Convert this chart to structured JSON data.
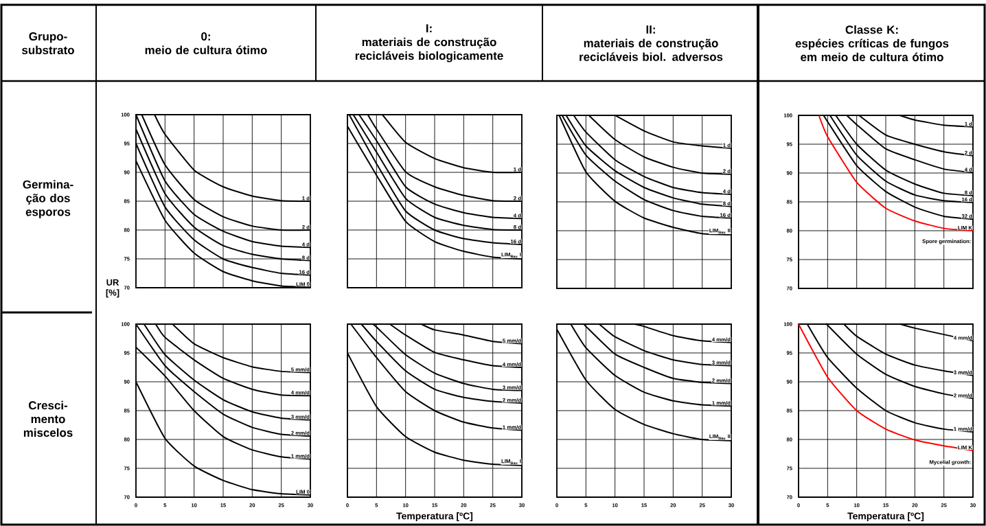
{
  "chart_data": [
    {
      "type": "line",
      "title": "0:",
      "subtitle": "meio de cultura ótimo",
      "ylabel": "UR [%]",
      "annotations": [
        "Grupo-substrato",
        "Germina-ção dos esporos"
      ],
      "xlim": [
        0,
        30
      ],
      "ylim": [
        70,
        100
      ],
      "xticks": [
        0,
        5,
        10,
        15,
        20,
        25,
        30
      ],
      "yticks": [
        70,
        75,
        80,
        85,
        90,
        95,
        100
      ],
      "grid": true,
      "tick_labels": "y",
      "series": [
        {
          "name": "1 d",
          "color": "#000000",
          "x": [
            3.2,
            5,
            10,
            15,
            20,
            25,
            30
          ],
          "values": [
            100,
            96.6,
            90.4,
            87.5,
            85.9,
            85.1,
            85
          ]
        },
        {
          "name": "2 d",
          "color": "#000000",
          "x": [
            1,
            5,
            10,
            15,
            20,
            25,
            30
          ],
          "values": [
            100,
            91.3,
            85.3,
            82.3,
            80.7,
            80,
            80
          ]
        },
        {
          "name": "4 d",
          "color": "#000000",
          "x": [
            0,
            5,
            10,
            15,
            20,
            25,
            30
          ],
          "values": [
            100,
            88.5,
            82.7,
            79.8,
            78,
            77.2,
            77
          ]
        },
        {
          "name": "8 d",
          "color": "#000000",
          "x": [
            0,
            5,
            10,
            15,
            20,
            25,
            30
          ],
          "values": [
            97.5,
            86.3,
            80.5,
            77.3,
            75.8,
            75,
            74.7
          ]
        },
        {
          "name": "16 d",
          "color": "#000000",
          "x": [
            0,
            5,
            10,
            15,
            20,
            25,
            30
          ],
          "values": [
            95,
            84,
            78.3,
            75,
            73.5,
            72.5,
            72.2
          ]
        },
        {
          "name": "LIM 0",
          "color": "#000000",
          "x": [
            0,
            5,
            10,
            15,
            20,
            25,
            30
          ],
          "values": [
            92,
            81.7,
            76,
            72.8,
            71.2,
            70.3,
            70.1
          ]
        }
      ]
    },
    {
      "type": "line",
      "title": "I:",
      "subtitle": "materiais de construção recicláveis biologicamente",
      "xlim": [
        0,
        30
      ],
      "ylim": [
        70,
        100
      ],
      "xticks": [
        0,
        5,
        10,
        15,
        20,
        25,
        30
      ],
      "yticks": [
        70,
        75,
        80,
        85,
        90,
        95,
        100
      ],
      "grid": true,
      "tick_labels": false,
      "series": [
        {
          "name": "1 d",
          "color": "#000000",
          "x": [
            6,
            10,
            15,
            20,
            25,
            30
          ],
          "values": [
            100,
            95.2,
            92.4,
            90.8,
            90,
            90
          ]
        },
        {
          "name": "2 d",
          "color": "#000000",
          "x": [
            3.5,
            5,
            10,
            15,
            20,
            25,
            30
          ],
          "values": [
            100,
            97.5,
            90.1,
            87.5,
            86,
            85.1,
            85
          ]
        },
        {
          "name": "4 d",
          "color": "#000000",
          "x": [
            2,
            5,
            10,
            15,
            20,
            25,
            30
          ],
          "values": [
            100,
            95.5,
            87.5,
            84.5,
            83,
            82.2,
            82
          ]
        },
        {
          "name": "8 d",
          "color": "#000000",
          "x": [
            1,
            5,
            10,
            15,
            20,
            25,
            30
          ],
          "values": [
            100,
            93.5,
            85.5,
            82.2,
            80.8,
            80.1,
            80
          ]
        },
        {
          "name": "16 d",
          "color": "#000000",
          "x": [
            0.3,
            5,
            10,
            15,
            20,
            25,
            30
          ],
          "values": [
            100,
            91.5,
            83.3,
            80,
            78.5,
            77.8,
            77.5
          ]
        },
        {
          "name": "LIM$_{Bau}$ I",
          "color": "#000000",
          "x": [
            0,
            5,
            10,
            15,
            20,
            25,
            30
          ],
          "values": [
            98,
            89.5,
            81.5,
            78,
            76.3,
            75.3,
            75
          ]
        }
      ]
    },
    {
      "type": "line",
      "title": "II:",
      "subtitle": "materiais de construção recicláveis biol. adversos",
      "xlim": [
        0,
        30
      ],
      "ylim": [
        70,
        100
      ],
      "xticks": [
        0,
        5,
        10,
        15,
        20,
        25,
        30
      ],
      "yticks": [
        70,
        75,
        80,
        85,
        90,
        95,
        100
      ],
      "grid": true,
      "tick_labels": false,
      "series": [
        {
          "name": "1 d",
          "color": "#000000",
          "x": [
            10,
            15,
            20,
            25,
            30
          ],
          "values": [
            100,
            97.3,
            95.4,
            94.7,
            94.3
          ]
        },
        {
          "name": "2 d",
          "color": "#000000",
          "x": [
            5.5,
            10,
            15,
            20,
            25,
            30
          ],
          "values": [
            100,
            95.8,
            92.8,
            91,
            90,
            89.8
          ]
        },
        {
          "name": "4 d",
          "color": "#000000",
          "x": [
            2.9,
            5,
            10,
            15,
            20,
            25,
            30
          ],
          "values": [
            100,
            97.1,
            92.3,
            89.4,
            87.5,
            86.6,
            86.3
          ]
        },
        {
          "name": "8 d",
          "color": "#000000",
          "x": [
            1.6,
            5,
            10,
            15,
            20,
            25,
            30
          ],
          "values": [
            100,
            94.7,
            90.4,
            87.5,
            85.7,
            84.6,
            84.2
          ]
        },
        {
          "name": "16 d",
          "color": "#000000",
          "x": [
            0.9,
            5,
            10,
            15,
            20,
            25,
            30
          ],
          "values": [
            100,
            93.1,
            88.6,
            85.4,
            83.5,
            82.5,
            82.2
          ]
        },
        {
          "name": "LIM$_{Bau}$ II",
          "color": "#000000",
          "x": [
            0.4,
            5,
            10,
            15,
            20,
            25,
            30
          ],
          "values": [
            100,
            90.2,
            85.1,
            82.2,
            80.6,
            79.5,
            79.3
          ]
        }
      ]
    },
    {
      "type": "line",
      "title": "Classe K:",
      "subtitle": "espécies críticas de fungos em meio de cultura ótimo",
      "annotations": [
        "Spore germination:"
      ],
      "xlim": [
        0,
        30
      ],
      "ylim": [
        70,
        100
      ],
      "xticks": [
        0,
        5,
        10,
        15,
        20,
        25,
        30
      ],
      "yticks": [
        70,
        75,
        80,
        85,
        90,
        95,
        100
      ],
      "grid": true,
      "tick_labels": "y",
      "series": [
        {
          "name": "1 d",
          "color": "#000000",
          "x": [
            17.4,
            20,
            25,
            30
          ],
          "values": [
            100,
            99.2,
            98.3,
            98
          ]
        },
        {
          "name": "2 d",
          "color": "#000000",
          "x": [
            10.4,
            15,
            20,
            25,
            30
          ],
          "values": [
            100,
            96.6,
            95,
            93.7,
            93
          ]
        },
        {
          "name": "4 d",
          "color": "#000000",
          "x": [
            8.3,
            10,
            15,
            20,
            25,
            30
          ],
          "values": [
            100,
            98.4,
            94.2,
            92.3,
            90.7,
            90.1
          ]
        },
        {
          "name": "8 d",
          "color": "#000000",
          "x": [
            6.4,
            10,
            15,
            20,
            25,
            30
          ],
          "values": [
            100,
            95,
            90.5,
            88.1,
            86.5,
            86.1
          ]
        },
        {
          "name": "16 d",
          "color": "#000000",
          "x": [
            5.4,
            10,
            15,
            20,
            25,
            30
          ],
          "values": [
            100,
            93.1,
            88.6,
            86.2,
            85.2,
            84.9
          ]
        },
        {
          "name": "32 d",
          "color": "#000000",
          "x": [
            4.3,
            5,
            10,
            15,
            20,
            25,
            30
          ],
          "values": [
            100,
            98.9,
            91.3,
            86.8,
            84.1,
            82.5,
            82
          ]
        },
        {
          "name": "LIM K",
          "color": "#ff0000",
          "x": [
            3.5,
            5,
            10,
            15,
            20,
            25,
            30
          ],
          "values": [
            100,
            96.3,
            88.4,
            83.9,
            81.7,
            80.4,
            80
          ]
        }
      ]
    },
    {
      "type": "line",
      "annotations": [
        "Cresci-mento miscelos"
      ],
      "xlim": [
        0,
        30
      ],
      "ylim": [
        70,
        100
      ],
      "xticks": [
        0,
        5,
        10,
        15,
        20,
        25,
        30
      ],
      "yticks": [
        70,
        75,
        80,
        85,
        90,
        95,
        100
      ],
      "grid": true,
      "series": [
        {
          "name": "5 mm/d",
          "color": "#000000",
          "x": [
            6.3,
            10,
            15,
            20,
            25,
            30
          ],
          "values": [
            100,
            96.6,
            94.2,
            92.6,
            91.8,
            91.6
          ]
        },
        {
          "name": "4 mm/d",
          "color": "#000000",
          "x": [
            3.4,
            5,
            10,
            15,
            20,
            25,
            30
          ],
          "values": [
            100,
            97.7,
            93.8,
            90.6,
            88.7,
            87.7,
            87.6
          ]
        },
        {
          "name": "3 mm/d",
          "color": "#000000",
          "x": [
            1.4,
            5,
            10,
            15,
            20,
            25,
            30
          ],
          "values": [
            100,
            94.7,
            90.3,
            86.9,
            84.8,
            83.7,
            83.4
          ]
        },
        {
          "name": "2 mm/d",
          "color": "#000000",
          "x": [
            0,
            5,
            10,
            15,
            20,
            25,
            30
          ],
          "values": [
            100,
            92.8,
            88.3,
            84.4,
            82.1,
            80.9,
            80.6
          ]
        },
        {
          "name": "1 mm/d",
          "color": "#000000",
          "x": [
            0,
            5,
            10,
            15,
            20,
            25,
            30
          ],
          "values": [
            96,
            91,
            85,
            80.5,
            78.2,
            77,
            76.6
          ]
        },
        {
          "name": "LIM 0",
          "color": "#000000",
          "x": [
            0,
            5,
            10,
            15,
            20,
            25,
            30
          ],
          "values": [
            90,
            80.2,
            75.4,
            72.9,
            71.3,
            70.6,
            70.4
          ]
        }
      ]
    },
    {
      "type": "line",
      "xlabel": "Temperatura [ºC]",
      "xlim": [
        0,
        30
      ],
      "ylim": [
        70,
        100
      ],
      "xticks": [
        0,
        5,
        10,
        15,
        20,
        25,
        30
      ],
      "yticks": [
        70,
        75,
        80,
        85,
        90,
        95,
        100
      ],
      "grid": true,
      "tick_labels": "x",
      "series": [
        {
          "name": "5 mm/d",
          "color": "#000000",
          "x": [
            12.7,
            15,
            20,
            25,
            30
          ],
          "values": [
            100,
            99,
            98.1,
            97,
            96.6
          ]
        },
        {
          "name": "4 mm/d",
          "color": "#000000",
          "x": [
            7.3,
            10,
            15,
            20,
            25,
            30
          ],
          "values": [
            100,
            98.1,
            95.1,
            93.8,
            92.8,
            92.5
          ]
        },
        {
          "name": "3 mm/d",
          "color": "#000000",
          "x": [
            4.4,
            5,
            10,
            15,
            20,
            25,
            30
          ],
          "values": [
            100,
            99.5,
            94.7,
            91.5,
            89.7,
            88.7,
            88.5
          ]
        },
        {
          "name": "2 mm/d",
          "color": "#000000",
          "x": [
            2.4,
            5,
            10,
            15,
            20,
            25,
            30
          ],
          "values": [
            100,
            97,
            91.9,
            88.7,
            87.3,
            86.6,
            86.3
          ]
        },
        {
          "name": "1 mm/d",
          "color": "#000000",
          "x": [
            0.6,
            5,
            10,
            15,
            20,
            25,
            30
          ],
          "values": [
            100,
            94.2,
            88.3,
            85,
            83,
            82,
            81.6
          ]
        },
        {
          "name": "LIM$_{Bau}$ I",
          "color": "#000000",
          "x": [
            0,
            5,
            10,
            15,
            20,
            25,
            30
          ],
          "values": [
            95,
            85.7,
            80.5,
            77.8,
            76.4,
            75.7,
            75.5
          ]
        }
      ]
    },
    {
      "type": "line",
      "xlim": [
        0,
        30
      ],
      "ylim": [
        70,
        100
      ],
      "xticks": [
        0,
        5,
        10,
        15,
        20,
        25,
        30
      ],
      "yticks": [
        70,
        75,
        80,
        85,
        90,
        95,
        100
      ],
      "grid": true,
      "tick_labels": "x",
      "series": [
        {
          "name": "4 mm/d",
          "color": "#000000",
          "x": [
            13.4,
            15,
            20,
            25,
            30
          ],
          "values": [
            100,
            99.6,
            98,
            97.1,
            96.8
          ]
        },
        {
          "name": "3 mm/d",
          "color": "#000000",
          "x": [
            7.3,
            10,
            15,
            20,
            25,
            30
          ],
          "values": [
            100,
            97.8,
            95.4,
            93.8,
            93,
            92.8
          ]
        },
        {
          "name": "2 mm/d",
          "color": "#000000",
          "x": [
            4.7,
            5,
            10,
            15,
            20,
            25,
            30
          ],
          "values": [
            100,
            99.6,
            94.8,
            92.5,
            90.6,
            89.9,
            89.7
          ]
        },
        {
          "name": "1 mm/d",
          "color": "#000000",
          "x": [
            2.4,
            5,
            10,
            15,
            20,
            25,
            30
          ],
          "values": [
            100,
            95.9,
            91.1,
            88.2,
            86.7,
            86,
            85.8
          ]
        },
        {
          "name": "LIM$_{Bau}$ II",
          "color": "#000000",
          "x": [
            0,
            5,
            10,
            15,
            20,
            25,
            30
          ],
          "values": [
            99.1,
            90.3,
            85.2,
            82.6,
            81,
            80,
            79.8
          ]
        }
      ]
    },
    {
      "type": "line",
      "xlabel": "Temperatura [ºC]",
      "annotations": [
        "Mycelial growth:"
      ],
      "xlim": [
        0,
        30
      ],
      "ylim": [
        70,
        100
      ],
      "xticks": [
        0,
        5,
        10,
        15,
        20,
        25,
        30
      ],
      "yticks": [
        70,
        75,
        80,
        85,
        90,
        95,
        100
      ],
      "grid": true,
      "series": [
        {
          "name": "4 mm/d",
          "color": "#000000",
          "x": [
            17.5,
            20,
            25,
            30
          ],
          "values": [
            100,
            99.3,
            98.2,
            97.1
          ]
        },
        {
          "name": "3 mm/d",
          "color": "#000000",
          "x": [
            7.8,
            10,
            15,
            20,
            25,
            30
          ],
          "values": [
            100,
            97.9,
            94.8,
            92.9,
            91.9,
            91.1
          ]
        },
        {
          "name": "2 mm/d",
          "color": "#000000",
          "x": [
            4.9,
            5,
            10,
            15,
            20,
            25,
            30
          ],
          "values": [
            100,
            99.8,
            94.8,
            91.3,
            89.2,
            87.9,
            87.1
          ]
        },
        {
          "name": "1 mm/d",
          "color": "#000000",
          "x": [
            1.5,
            5,
            10,
            15,
            20,
            25,
            30
          ],
          "values": [
            100,
            94.2,
            88.9,
            85,
            82.9,
            81.8,
            81.3
          ]
        },
        {
          "name": "LIM K",
          "color": "#ff0000",
          "x": [
            0,
            5,
            10,
            15,
            20,
            25,
            30
          ],
          "values": [
            100,
            90.8,
            85,
            81.8,
            79.9,
            78.9,
            78.1
          ]
        }
      ]
    }
  ]
}
